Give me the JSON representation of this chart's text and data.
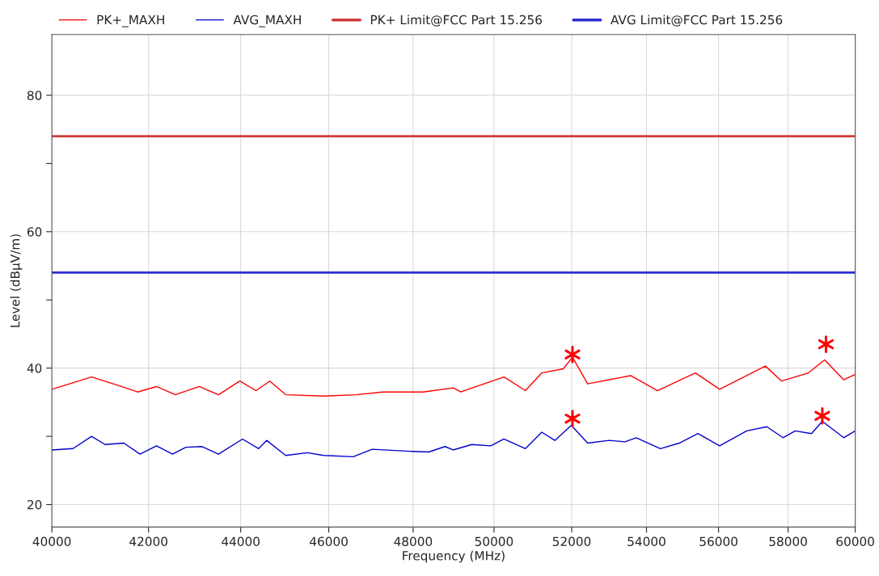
{
  "chart_data": {
    "type": "line",
    "xlabel": "Frequency (MHz)",
    "ylabel": "Level (dBµV/m)",
    "log": "x",
    "xlim": [
      40000,
      60000
    ],
    "ylim": [
      16.7,
      88.9
    ],
    "xticks": [
      40000,
      42000,
      44000,
      46000,
      48000,
      50000,
      52000,
      54000,
      56000,
      58000,
      60000
    ],
    "yticks": [
      20,
      {
        "value": 30,
        "label": null
      },
      40,
      {
        "value": 50,
        "label": null
      },
      60,
      {
        "value": 70,
        "label": null
      },
      80
    ],
    "grid": true,
    "legend": "top",
    "series": [
      {
        "name": "PK+_MAXH",
        "color": "#ff0000",
        "x": [
          40000,
          40810,
          41260,
          41770,
          42170,
          42570,
          43090,
          43510,
          43980,
          44340,
          44650,
          45010,
          45880,
          46640,
          47270,
          48250,
          48980,
          49170,
          50250,
          50800,
          51220,
          51780,
          52020,
          52420,
          53570,
          54300,
          55350,
          56030,
          57340,
          57810,
          58600,
          59080,
          59650,
          60000
        ],
        "values": [
          36.9,
          38.7,
          37.7,
          36.5,
          37.3,
          36.1,
          37.3,
          36.1,
          38.1,
          36.7,
          38.1,
          36.1,
          35.9,
          36.1,
          36.5,
          36.5,
          37.1,
          36.5,
          38.7,
          36.7,
          39.3,
          39.9,
          41.6,
          37.7,
          38.9,
          36.7,
          39.3,
          36.9,
          40.3,
          38.1,
          39.3,
          41.2,
          38.3,
          39.1
        ]
      },
      {
        "name": "AVG_MAXH",
        "color": "#0000cc",
        "x": [
          40000,
          40430,
          40810,
          41090,
          41480,
          41820,
          42170,
          42510,
          42800,
          43150,
          43510,
          44040,
          44400,
          44580,
          45010,
          45510,
          45880,
          46570,
          47020,
          47920,
          48380,
          48780,
          48980,
          49440,
          49920,
          50250,
          50800,
          51220,
          51560,
          51990,
          52420,
          52990,
          53420,
          53720,
          54380,
          54900,
          55420,
          56030,
          56800,
          57380,
          57850,
          58210,
          58690,
          59010,
          59650,
          60000
        ],
        "values": [
          28.0,
          28.2,
          30.0,
          28.8,
          29.0,
          27.4,
          28.6,
          27.4,
          28.4,
          28.5,
          27.4,
          29.6,
          28.2,
          29.4,
          27.2,
          27.6,
          27.2,
          27.0,
          28.1,
          27.8,
          27.7,
          28.5,
          28.0,
          28.8,
          28.6,
          29.6,
          28.2,
          30.6,
          29.4,
          31.6,
          29.0,
          29.4,
          29.2,
          29.8,
          28.2,
          29.0,
          30.4,
          28.6,
          30.8,
          31.4,
          29.8,
          30.8,
          30.4,
          32.2,
          29.8,
          30.8
        ]
      },
      {
        "name": "PK+ Limit@FCC Part 15.256",
        "color": "#d03c3c",
        "x": [
          40000,
          60000
        ],
        "values": [
          74,
          74
        ]
      },
      {
        "name": "AVG Limit@FCC Part 15.256",
        "color": "#2d2dd2",
        "x": [
          40000,
          60000
        ],
        "values": [
          54,
          54
        ]
      },
      {
        "type": "scatter",
        "marker": "cross",
        "color": "#ff0000",
        "x": [
          52020,
          59120
        ],
        "values": [
          42.0,
          43.5
        ]
      },
      {
        "type": "scatter",
        "marker": "cross",
        "color": "#ff0000",
        "x": [
          52020,
          59010
        ],
        "values": [
          32.6,
          33.0
        ]
      }
    ]
  }
}
